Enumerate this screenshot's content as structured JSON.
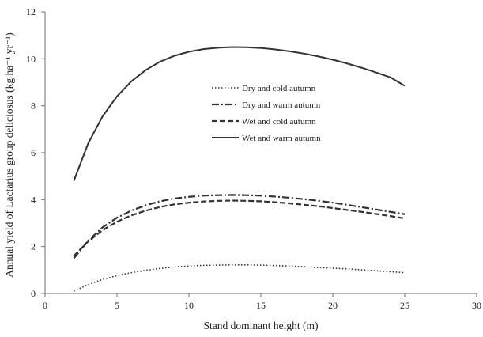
{
  "chart_data": {
    "type": "line",
    "xlabel": "Stand dominant height (m)",
    "ylabel": "Annual yield of Lactarius group deliciosus (kg ha⁻¹ yr⁻¹)",
    "xlim": [
      0,
      30
    ],
    "ylim": [
      0,
      12
    ],
    "xticks": [
      0,
      5,
      10,
      15,
      20,
      25,
      30
    ],
    "yticks": [
      0,
      2,
      4,
      6,
      8,
      10,
      12
    ],
    "grid": false,
    "legend_position": "center",
    "x": [
      2,
      3,
      4,
      5,
      6,
      7,
      8,
      9,
      10,
      11,
      12,
      13,
      14,
      15,
      16,
      17,
      18,
      19,
      20,
      21,
      22,
      23,
      24,
      25
    ],
    "series": [
      {
        "name": "Dry and cold autumn",
        "style": "dotted",
        "values": [
          0.1,
          0.38,
          0.6,
          0.76,
          0.89,
          0.99,
          1.07,
          1.13,
          1.17,
          1.2,
          1.21,
          1.22,
          1.22,
          1.21,
          1.19,
          1.17,
          1.14,
          1.11,
          1.08,
          1.05,
          1.01,
          0.97,
          0.93,
          0.89
        ]
      },
      {
        "name": "Dry and warm autumn",
        "style": "dashdot",
        "values": [
          1.5,
          2.25,
          2.82,
          3.23,
          3.53,
          3.76,
          3.93,
          4.05,
          4.12,
          4.17,
          4.19,
          4.2,
          4.19,
          4.17,
          4.13,
          4.08,
          4.02,
          3.95,
          3.87,
          3.78,
          3.68,
          3.58,
          3.48,
          3.38
        ]
      },
      {
        "name": "Wet and cold autumn",
        "style": "dashed",
        "values": [
          1.6,
          2.22,
          2.7,
          3.06,
          3.33,
          3.53,
          3.69,
          3.8,
          3.87,
          3.92,
          3.95,
          3.96,
          3.95,
          3.93,
          3.89,
          3.84,
          3.78,
          3.72,
          3.64,
          3.56,
          3.48,
          3.39,
          3.3,
          3.2
        ]
      },
      {
        "name": "Wet and warm autumn",
        "style": "solid",
        "values": [
          4.8,
          6.4,
          7.55,
          8.4,
          9.04,
          9.52,
          9.88,
          10.13,
          10.3,
          10.41,
          10.47,
          10.5,
          10.49,
          10.46,
          10.4,
          10.32,
          10.22,
          10.1,
          9.96,
          9.8,
          9.62,
          9.42,
          9.21,
          8.85
        ]
      }
    ],
    "line_color": "#333333",
    "axis_color": "#6e6e6e"
  }
}
